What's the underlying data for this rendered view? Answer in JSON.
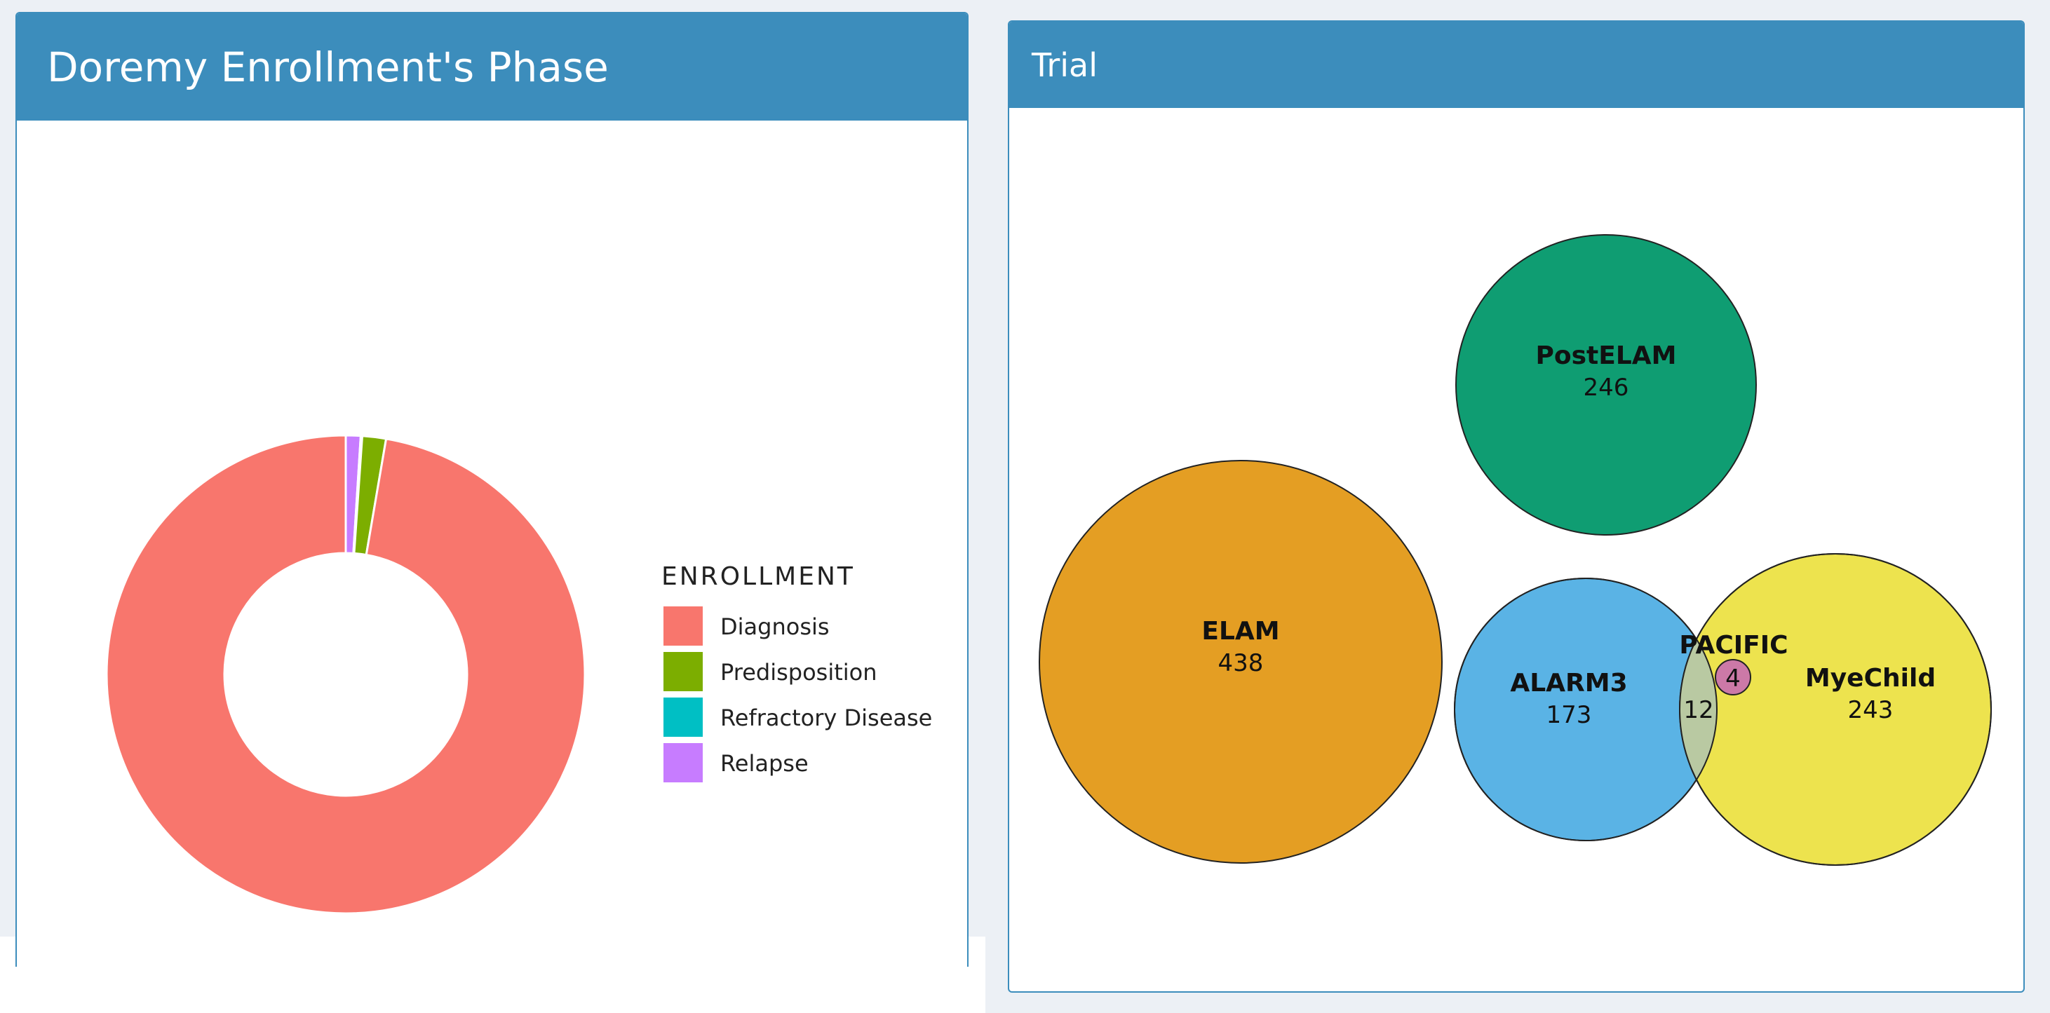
{
  "panels": {
    "left": {
      "title": "Doremy Enrollment's Phase"
    },
    "right": {
      "title": "Trial"
    }
  },
  "chart_data": [
    {
      "type": "pie",
      "title": "Doremy Enrollment's Phase",
      "donut": true,
      "legend_title": "ENROLLMENT",
      "legend_position": "right",
      "categories": [
        "Diagnosis",
        "Predisposition",
        "Refractory Disease",
        "Relapse"
      ],
      "values": [
        97.3,
        1.6,
        0.1,
        1.0
      ],
      "colors": [
        "#f8766d",
        "#7cae00",
        "#00bfc4",
        "#c77cff"
      ]
    },
    {
      "type": "venn",
      "title": "Trial",
      "sets": [
        {
          "name": "PostELAM",
          "count": "246",
          "color": "#0f9d72"
        },
        {
          "name": "ELAM",
          "count": "438",
          "color": "#e49e23"
        },
        {
          "name": "ALARM3",
          "count": "173",
          "color": "#5ab3e5"
        },
        {
          "name": "MyeChild",
          "count": "243",
          "color": "#ede34e"
        },
        {
          "name": "PACIFIC",
          "count": "4",
          "color": "#cc79a7"
        }
      ],
      "overlap_label": "12"
    }
  ]
}
